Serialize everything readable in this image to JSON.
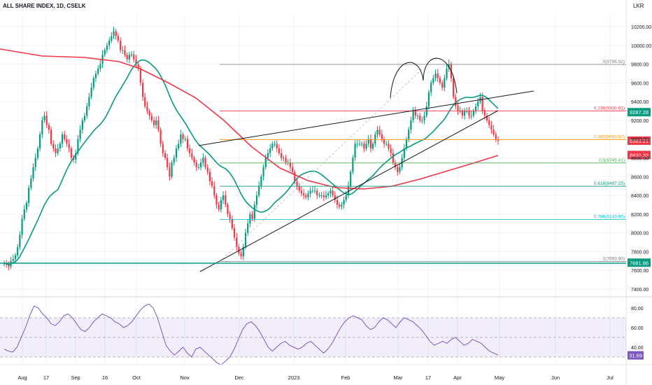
{
  "header": {
    "title": "ALL SHARE INDEX, 1D, CSELK",
    "currency": "LKR"
  },
  "chart_data": [
    {
      "type": "candlestick",
      "title": "ALL SHARE INDEX, 1D, CSELK",
      "y_axis_unit": "LKR",
      "ylim": [
        7400,
        10400
      ],
      "y_ticks": [
        7400,
        7600,
        7800,
        8000,
        8200,
        8400,
        8600,
        8800,
        9000,
        9200,
        9400,
        9600,
        9800,
        10000,
        10200
      ],
      "y_tick_labels": [
        "7400.00",
        "7600.00",
        "7800.00",
        "8000.00",
        "8200.00",
        "8400.00",
        "8600.00",
        "8800.00",
        "9000.00",
        "9200.00",
        "9400.00",
        "9600.00",
        "9800.00",
        "10000.00",
        "10200.00"
      ],
      "x_ticks": [
        "Aug",
        "17",
        "Sep",
        "16",
        "Oct",
        "Nov",
        "Dec",
        "2023",
        "Feb",
        "Mar",
        "17",
        "Apr",
        "May",
        "Jun",
        "Jul"
      ],
      "closes": [
        7680,
        7660,
        7640,
        7700,
        7720,
        7760,
        7850,
        7980,
        8150,
        8250,
        8320,
        8480,
        8580,
        8700,
        8800,
        8900,
        9050,
        9200,
        9250,
        9150,
        9100,
        8950,
        8900,
        8850,
        8900,
        8950,
        9050,
        9000,
        8950,
        8900,
        8800,
        8780,
        8850,
        9000,
        9100,
        9200,
        9250,
        9350,
        9450,
        9550,
        9650,
        9700,
        9750,
        9800,
        9900,
        9950,
        10000,
        10050,
        10100,
        10150,
        10100,
        10050,
        9950,
        9950,
        9900,
        9850,
        9900,
        9900,
        9850,
        9800,
        9750,
        9600,
        9450,
        9350,
        9300,
        9250,
        9200,
        9150,
        9200,
        9100,
        8950,
        8850,
        8800,
        8700,
        8600,
        8750,
        8800,
        8900,
        8950,
        9050,
        9000,
        9000,
        8900,
        8850,
        8800,
        8750,
        8700,
        8700,
        8750,
        8800,
        8700,
        8650,
        8550,
        8500,
        8400,
        8300,
        8250,
        8350,
        8400,
        8300,
        8200,
        8150,
        8050,
        7950,
        7850,
        7780,
        7750,
        7850,
        8000,
        8100,
        8200,
        8150,
        8300,
        8400,
        8500,
        8600,
        8700,
        8800,
        8850,
        8900,
        8950,
        8950,
        8900,
        8850,
        8800,
        8800,
        8750,
        8750,
        8700,
        8650,
        8550,
        8500,
        8450,
        8420,
        8400,
        8380,
        8420,
        8450,
        8450,
        8450,
        8400,
        8400,
        8400,
        8380,
        8400,
        8420,
        8450,
        8400,
        8350,
        8300,
        8280,
        8300,
        8350,
        8400,
        8500,
        8650,
        8800,
        8950,
        8950,
        8950,
        8950,
        8900,
        8950,
        9000,
        8900,
        8950,
        9050,
        9100,
        9050,
        9000,
        8950,
        8950,
        8900,
        8850,
        8750,
        8700,
        8650,
        8700,
        8800,
        8900,
        9000,
        9100,
        9200,
        9300,
        9250,
        9250,
        9200,
        9200,
        9250,
        9350,
        9500,
        9600,
        9650,
        9700,
        9650,
        9600,
        9550,
        9650,
        9750,
        9800,
        9650,
        9450,
        9350,
        9300,
        9300,
        9250,
        9300,
        9300,
        9250,
        9250,
        9300,
        9350,
        9400,
        9450,
        9300,
        9250,
        9200,
        9150,
        9100,
        9050,
        9000,
        8983.21
      ],
      "series": [
        {
          "name": "",
          "kind": "moving-average",
          "color": "#089981"
        },
        {
          "name": "",
          "kind": "moving-average",
          "color": "#f23645"
        }
      ],
      "fibonacci": [
        {
          "label": "0(9796.92)",
          "value": 9796.92,
          "color": "#787b86"
        },
        {
          "label": "0.236(9300.61)",
          "value": 9300.61,
          "color": "#f23645"
        },
        {
          "label": "0.382(8993.57)",
          "value": 8993.57,
          "color": "#ff9800"
        },
        {
          "label": "0.5(8745.41)",
          "value": 8745.41,
          "color": "#4caf50"
        },
        {
          "label": "0.618(8497.25)",
          "value": 8497.25,
          "color": "#089981"
        },
        {
          "label": "0.786(8143.95)",
          "value": 8143.95,
          "color": "#00bcd4"
        },
        {
          "label": "1(7693.90)",
          "value": 7693.9,
          "color": "#787b86"
        }
      ],
      "price_badges": [
        {
          "label": "9287.28",
          "value": 9287.28,
          "color": "#089981"
        },
        {
          "label": "8983.21",
          "value": 8983.21,
          "color": "#f23645"
        },
        {
          "label": "8830.32",
          "value": 8830.32,
          "color": "#f23645"
        },
        {
          "label": "7681.86",
          "value": 7681.86,
          "color": "#089981"
        }
      ],
      "accent_colors": {
        "up": "#089981",
        "down": "#f23645"
      }
    },
    {
      "type": "line",
      "title": "",
      "ylim": [
        20,
        90
      ],
      "y_ticks": [
        80,
        60,
        40
      ],
      "y_tick_labels": [
        "80.00",
        "60.00",
        "40.00"
      ],
      "band": [
        30,
        70
      ],
      "last_value_label": "31.69",
      "last_value": 31.69,
      "color": "#7e57c2",
      "values": [
        38,
        36,
        35,
        40,
        50,
        60,
        72,
        82,
        80,
        74,
        70,
        64,
        62,
        66,
        72,
        74,
        70,
        64,
        58,
        56,
        60,
        66,
        70,
        74,
        72,
        70,
        66,
        64,
        60,
        62,
        66,
        72,
        78,
        82,
        84,
        80,
        70,
        56,
        42,
        36,
        32,
        36,
        40,
        34,
        30,
        38,
        40,
        36,
        32,
        28,
        24,
        22,
        26,
        30,
        38,
        48,
        58,
        64,
        66,
        62,
        56,
        48,
        40,
        36,
        40,
        44,
        46,
        42,
        40,
        38,
        40,
        44,
        46,
        42,
        38,
        34,
        38,
        44,
        52,
        60,
        66,
        70,
        72,
        70,
        68,
        62,
        58,
        60,
        66,
        70,
        68,
        64,
        60,
        66,
        70,
        68,
        66,
        62,
        58,
        52,
        46,
        42,
        44,
        46,
        44,
        48,
        50,
        46,
        42,
        44,
        48,
        46,
        44,
        40,
        36,
        34,
        32
      ]
    }
  ]
}
